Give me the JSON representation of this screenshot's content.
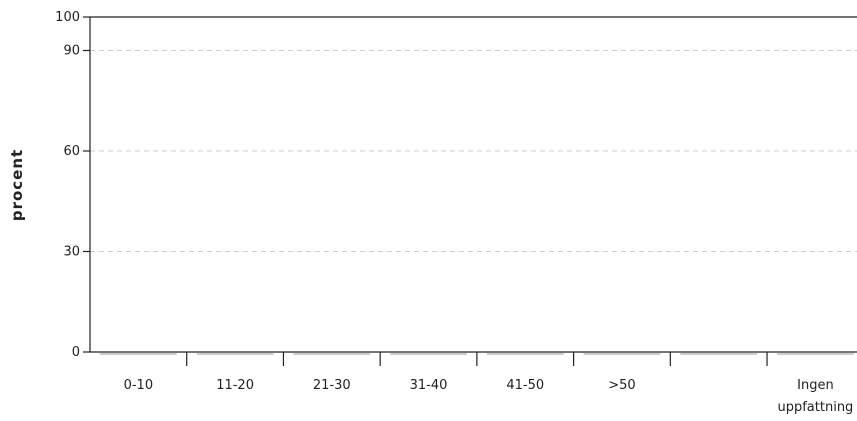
{
  "chart_data": {
    "type": "bar",
    "ylabel": "procent",
    "xlabel": "",
    "ylim": [
      0,
      100
    ],
    "yticks": [
      0,
      30,
      60,
      90,
      100
    ],
    "grid_values": [
      30,
      60,
      90
    ],
    "grid": true,
    "categories": [
      [
        "0-10"
      ],
      [
        "11-20"
      ],
      [
        "21-30"
      ],
      [
        "31-40"
      ],
      [
        "41-50"
      ],
      [
        ">50"
      ],
      [
        ""
      ],
      [
        "Ingen",
        "uppfattning"
      ]
    ],
    "values": [
      0,
      0,
      0,
      0,
      0,
      0,
      0,
      0
    ],
    "colors": {
      "axis": "#222222",
      "grid": "#cccccc",
      "bar_baseline": "#bbbbbb"
    }
  }
}
